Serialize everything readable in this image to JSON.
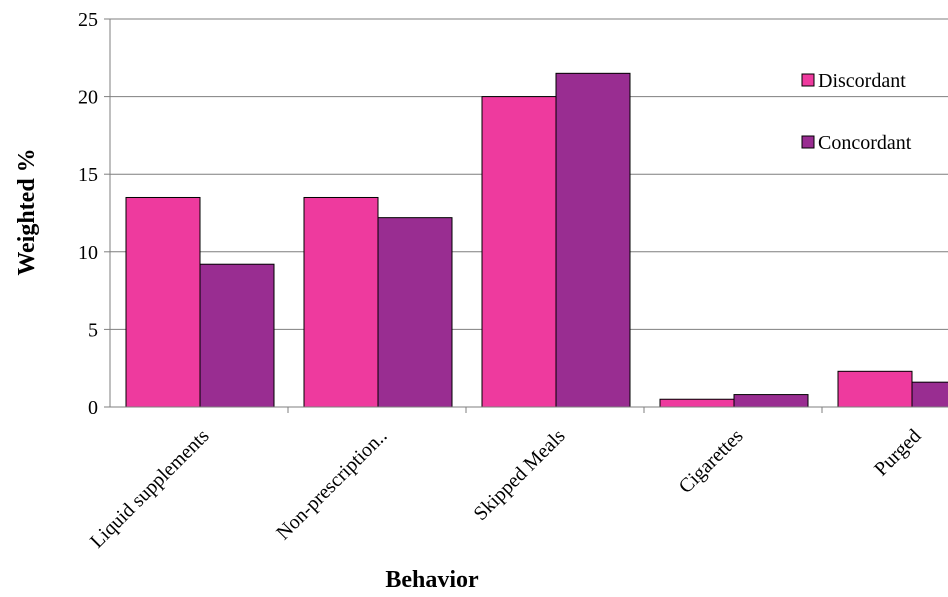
{
  "chart_data": {
    "type": "bar",
    "ylabel": "Weighted %",
    "xlabel": "Behavior",
    "ylim": [
      0,
      25
    ],
    "yticks": [
      0,
      5,
      10,
      15,
      20,
      25
    ],
    "grid": true,
    "legend_position": "right",
    "categories": [
      "Liquid supplements",
      "Non-prescription..",
      "Skipped Meals",
      "Cigarettes",
      "Purged"
    ],
    "series": [
      {
        "name": "Discordant",
        "color": "#ee3a9e",
        "values": [
          13.5,
          13.5,
          20.0,
          0.5,
          2.3
        ]
      },
      {
        "name": "Concordant",
        "color": "#992d91",
        "values": [
          9.2,
          12.2,
          21.5,
          0.8,
          1.6
        ]
      }
    ]
  }
}
